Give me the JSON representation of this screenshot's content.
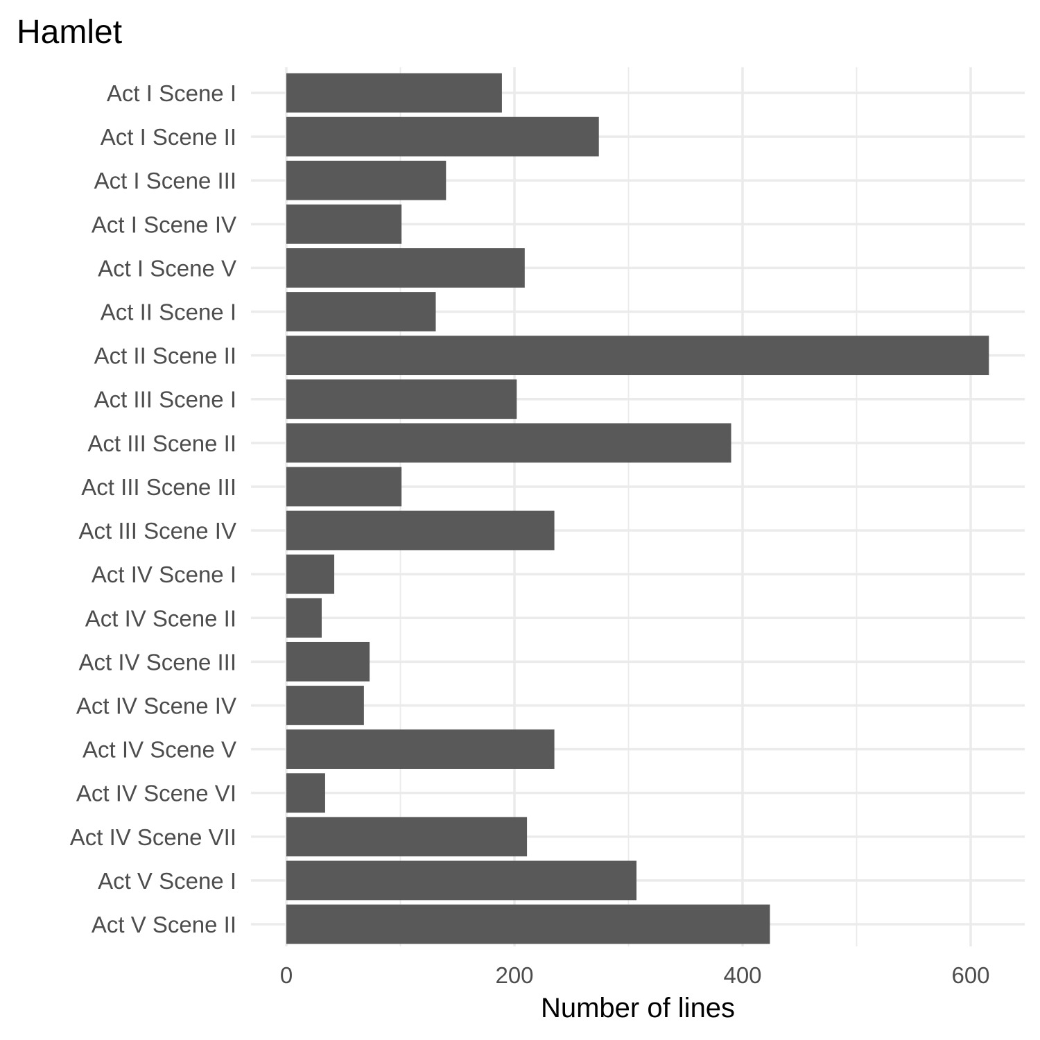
{
  "chart_data": {
    "type": "bar",
    "orientation": "horizontal",
    "title": "Hamlet",
    "xlabel": "Number of lines",
    "ylabel": "",
    "xlim": [
      0,
      640
    ],
    "xticks": [
      0,
      200,
      400,
      600
    ],
    "grid": true,
    "bar_color": "#595959",
    "categories": [
      "Act I Scene I",
      "Act I Scene II",
      "Act I Scene III",
      "Act I Scene IV",
      "Act I Scene V",
      "Act II Scene I",
      "Act II Scene II",
      "Act III Scene I",
      "Act III Scene II",
      "Act III Scene III",
      "Act III Scene IV",
      "Act IV Scene I",
      "Act IV Scene II",
      "Act IV Scene III",
      "Act IV Scene IV",
      "Act IV Scene V",
      "Act IV Scene VI",
      "Act IV Scene VII",
      "Act V Scene I",
      "Act V Scene II"
    ],
    "values": [
      189,
      274,
      140,
      101,
      209,
      131,
      616,
      202,
      390,
      101,
      235,
      42,
      31,
      73,
      68,
      235,
      34,
      211,
      307,
      424
    ]
  }
}
